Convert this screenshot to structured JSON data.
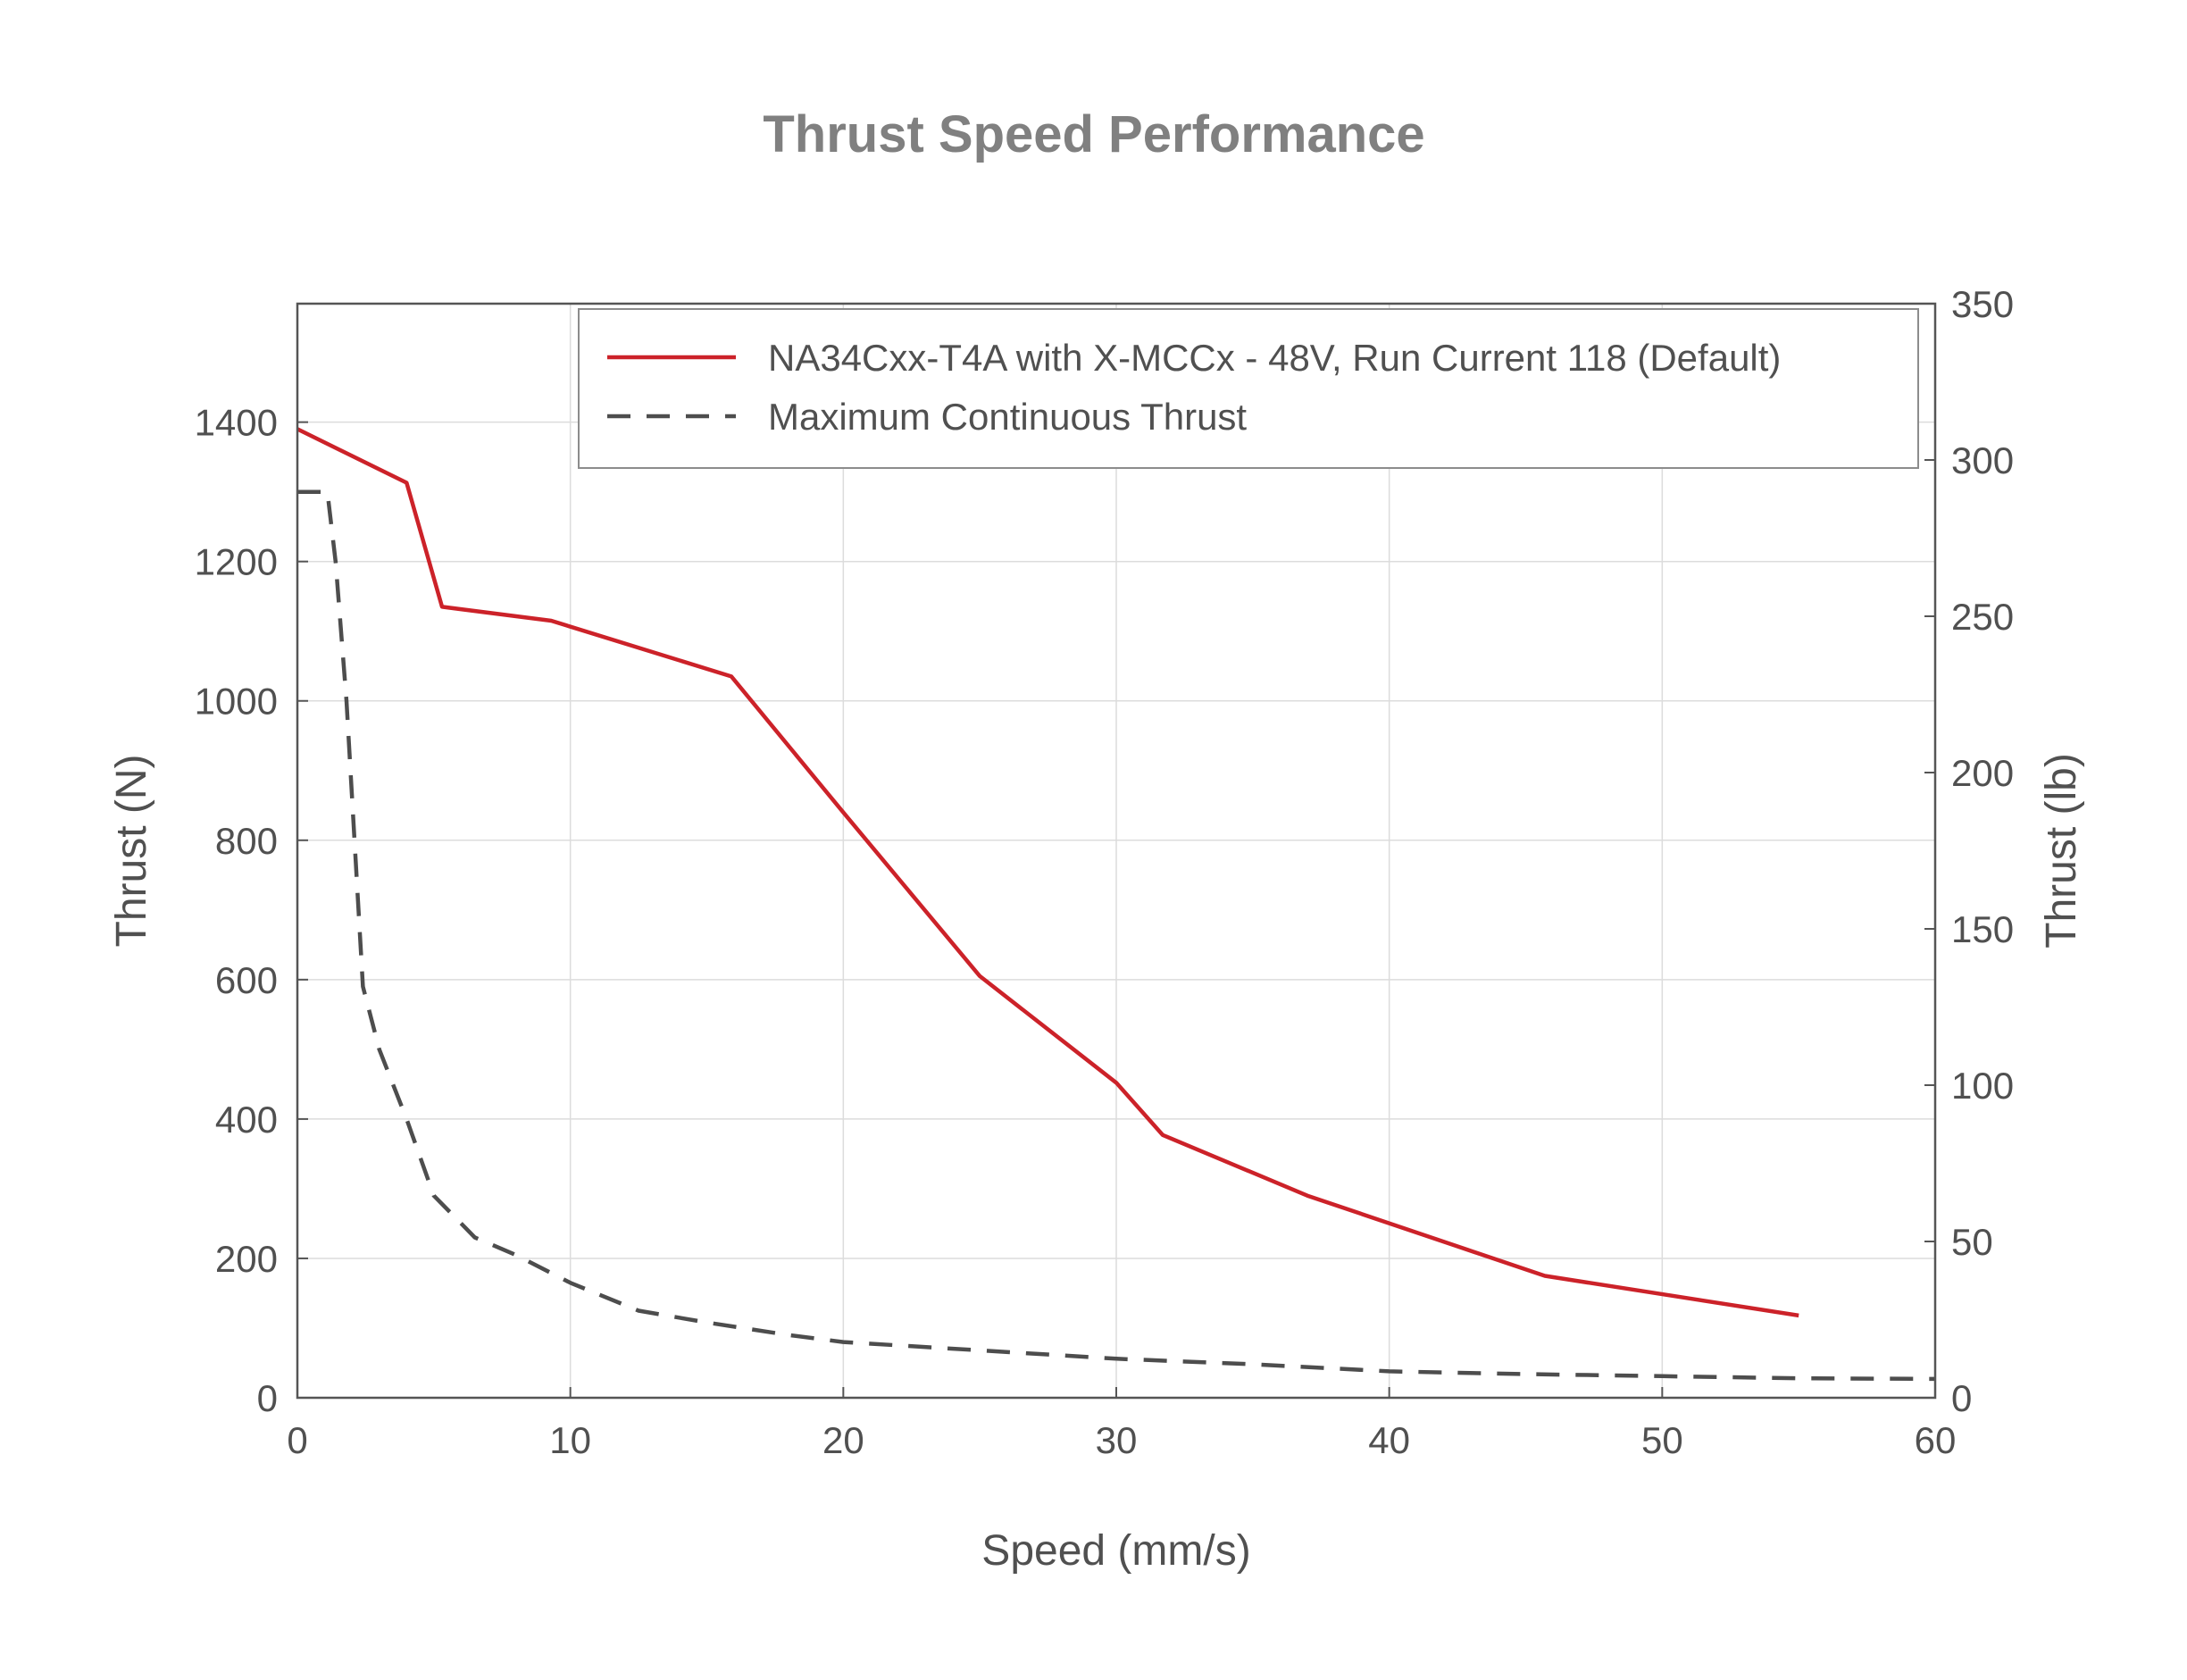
{
  "chart_data": {
    "type": "line",
    "title": "Thrust Speed Performance",
    "xlabel": "Speed (mm/s)",
    "ylabel": "Thrust (N)",
    "y2label": "Thrust (lb)",
    "xlim": [
      0,
      60
    ],
    "ylim": [
      0,
      1570
    ],
    "y2lim": [
      0,
      350
    ],
    "xticks": [
      0,
      10,
      20,
      30,
      40,
      50,
      60
    ],
    "yticks": [
      0,
      200,
      400,
      600,
      800,
      1000,
      1200,
      1400
    ],
    "y2ticks": [
      0,
      50,
      100,
      150,
      200,
      250,
      300,
      350
    ],
    "grid": true,
    "legend_position": "top-right",
    "series": [
      {
        "name": "NA34Cxx-T4A with X-MCCx - 48V, Run Current 118 (Default)",
        "color": "#cc2229",
        "style": "solid",
        "x": [
          0,
          4,
          5.3,
          9.3,
          15.9,
          20,
          25,
          30,
          31.7,
          37,
          45.7,
          55
        ],
        "y": [
          1390,
          1313,
          1135,
          1115,
          1035,
          840,
          605,
          452,
          377,
          290,
          175,
          118
        ]
      },
      {
        "name": "Maximum Continuous Thrust",
        "color": "#4d4d4d",
        "style": "dashed",
        "x": [
          0,
          1.1,
          1.4,
          1.8,
          2.4,
          3,
          4,
          5,
          6.5,
          8,
          10,
          12.5,
          15,
          18,
          20,
          25,
          30,
          35,
          40,
          45,
          50,
          55,
          60
        ],
        "y": [
          1300,
          1300,
          1200,
          1000,
          590,
          500,
          400,
          290,
          230,
          205,
          165,
          125,
          108,
          90,
          80,
          68,
          56,
          48,
          38,
          34,
          31,
          28,
          27
        ]
      }
    ]
  }
}
